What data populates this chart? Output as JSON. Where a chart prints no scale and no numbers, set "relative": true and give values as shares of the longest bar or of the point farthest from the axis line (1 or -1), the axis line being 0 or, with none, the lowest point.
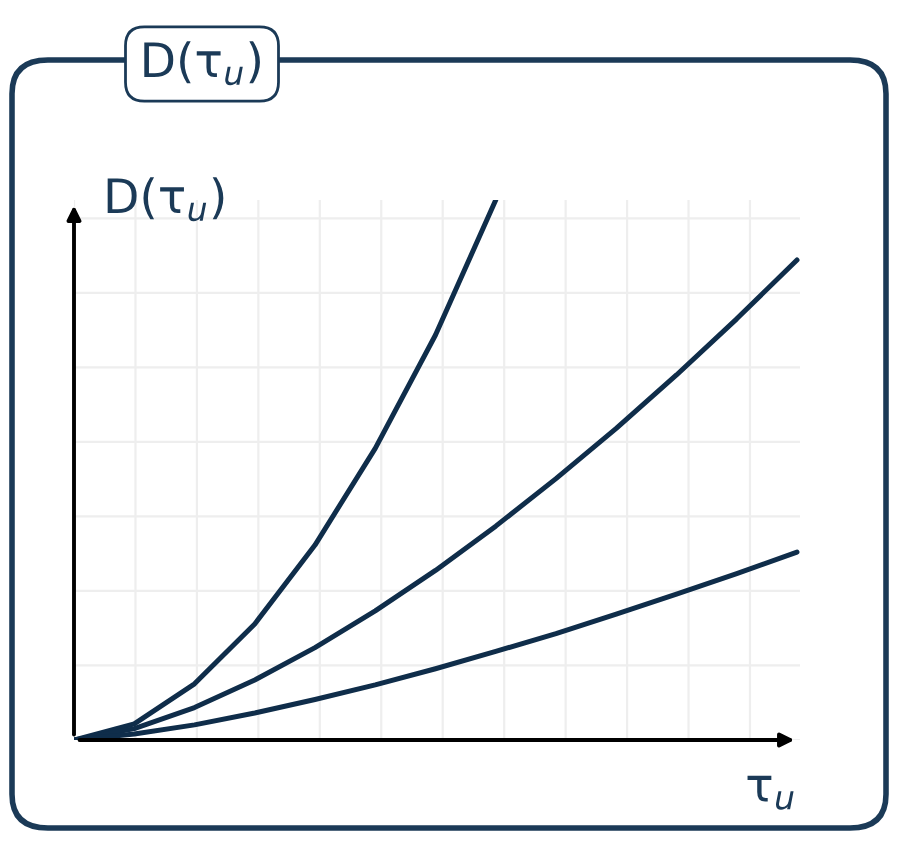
{
  "chart_data": {
    "type": "line",
    "relative": true,
    "title": "D(τ$_{u}$)",
    "ylabel": "D(τ$_{u}$)",
    "xlabel": "τ$_{u}$",
    "grid": true,
    "line_style": "solid",
    "categories": [
      null,
      null,
      null,
      null,
      null,
      null,
      null,
      null,
      null,
      null,
      null,
      null,
      null
    ],
    "series": [
      {
        "color": "#0f2d4a",
        "values": [
          0,
          0.03,
          0.104,
          0.215,
          0.361,
          0.54,
          0.75,
          1.0,
          null,
          null,
          null,
          null,
          null
        ]
      },
      {
        "color": "#0f2d4a",
        "values": [
          0,
          0.021,
          0.06,
          0.111,
          0.171,
          0.239,
          0.314,
          0.396,
          0.484,
          0.577,
          0.676,
          0.78,
          0.889
        ]
      },
      {
        "color": "#0f2d4a",
        "values": [
          0,
          0.011,
          0.028,
          0.05,
          0.075,
          0.102,
          0.132,
          0.164,
          0.197,
          0.233,
          0.27,
          0.308,
          0.348
        ]
      }
    ]
  }
}
